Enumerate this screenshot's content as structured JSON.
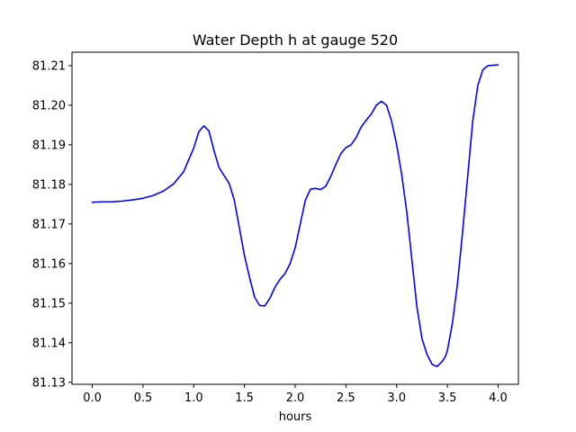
{
  "chart_data": {
    "type": "line",
    "title": "Water Depth h at gauge 520",
    "xlabel": "hours",
    "ylabel": "",
    "xlim": [
      -0.2,
      4.2
    ],
    "ylim": [
      81.1295,
      81.2134
    ],
    "xticks": [
      0.0,
      0.5,
      1.0,
      1.5,
      2.0,
      2.5,
      3.0,
      3.5,
      4.0
    ],
    "xtick_labels": [
      "0.0",
      "0.5",
      "1.0",
      "1.5",
      "2.0",
      "2.5",
      "3.0",
      "3.5",
      "4.0"
    ],
    "yticks": [
      81.13,
      81.14,
      81.15,
      81.16,
      81.17,
      81.18,
      81.19,
      81.2,
      81.21
    ],
    "ytick_labels": [
      "81.13",
      "81.14",
      "81.15",
      "81.16",
      "81.17",
      "81.18",
      "81.19",
      "81.20",
      "81.21"
    ],
    "grid": false,
    "legend": "none",
    "series": [
      {
        "color": "#0000ff",
        "x": [
          0.0,
          0.1,
          0.2,
          0.3,
          0.4,
          0.5,
          0.6,
          0.7,
          0.8,
          0.9,
          1.0,
          1.05,
          1.1,
          1.15,
          1.2,
          1.25,
          1.3,
          1.35,
          1.4,
          1.45,
          1.5,
          1.55,
          1.6,
          1.65,
          1.7,
          1.75,
          1.8,
          1.85,
          1.9,
          1.95,
          2.0,
          2.05,
          2.1,
          2.15,
          2.2,
          2.25,
          2.3,
          2.35,
          2.4,
          2.45,
          2.5,
          2.55,
          2.6,
          2.65,
          2.7,
          2.75,
          2.8,
          2.85,
          2.9,
          2.95,
          3.0,
          3.05,
          3.1,
          3.15,
          3.2,
          3.25,
          3.3,
          3.35,
          3.4,
          3.45,
          3.48,
          3.5,
          3.55,
          3.6,
          3.65,
          3.7,
          3.75,
          3.8,
          3.85,
          3.9,
          3.95,
          4.0
        ],
        "y": [
          81.1755,
          81.1756,
          81.1756,
          81.1758,
          81.1761,
          81.1765,
          81.1772,
          81.1783,
          81.1801,
          81.1832,
          81.1892,
          81.1933,
          81.1948,
          81.1935,
          81.1885,
          81.1842,
          81.1822,
          81.1802,
          81.176,
          81.169,
          81.162,
          81.1565,
          81.1515,
          81.1494,
          81.1493,
          81.1512,
          81.154,
          81.156,
          81.1575,
          81.16,
          81.164,
          81.17,
          81.176,
          81.1788,
          81.179,
          81.1787,
          81.1795,
          81.182,
          81.185,
          81.1878,
          81.1893,
          81.19,
          81.1918,
          81.1945,
          81.1962,
          81.1978,
          81.2,
          81.201,
          81.2,
          81.196,
          81.19,
          81.1825,
          81.173,
          81.161,
          81.149,
          81.141,
          81.137,
          81.1345,
          81.134,
          81.1353,
          81.1365,
          81.138,
          81.145,
          81.155,
          81.168,
          81.182,
          81.196,
          81.205,
          81.209,
          81.21,
          81.2101,
          81.2102
        ]
      }
    ]
  }
}
